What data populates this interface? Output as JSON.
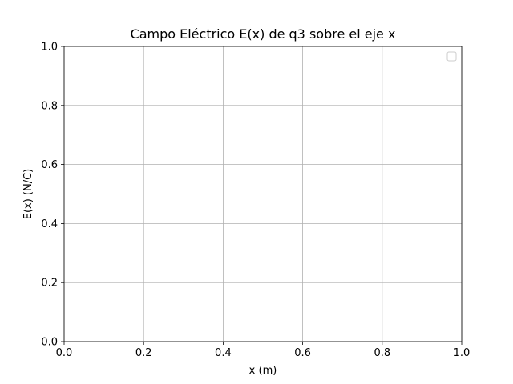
{
  "chart_data": {
    "type": "line",
    "title": "Campo Eléctrico E(x) de q3 sobre el eje x",
    "xlabel": "x (m)",
    "ylabel": "E(x) (N/C)",
    "xlim": [
      0.0,
      1.0
    ],
    "ylim": [
      0.0,
      1.0
    ],
    "x_ticks": [
      "0.0",
      "0.2",
      "0.4",
      "0.6",
      "0.8",
      "1.0"
    ],
    "y_ticks": [
      "0.0",
      "0.2",
      "0.4",
      "0.6",
      "0.8",
      "1.0"
    ],
    "grid": true,
    "legend": {
      "placement": "top-right",
      "entries": []
    },
    "series": []
  }
}
